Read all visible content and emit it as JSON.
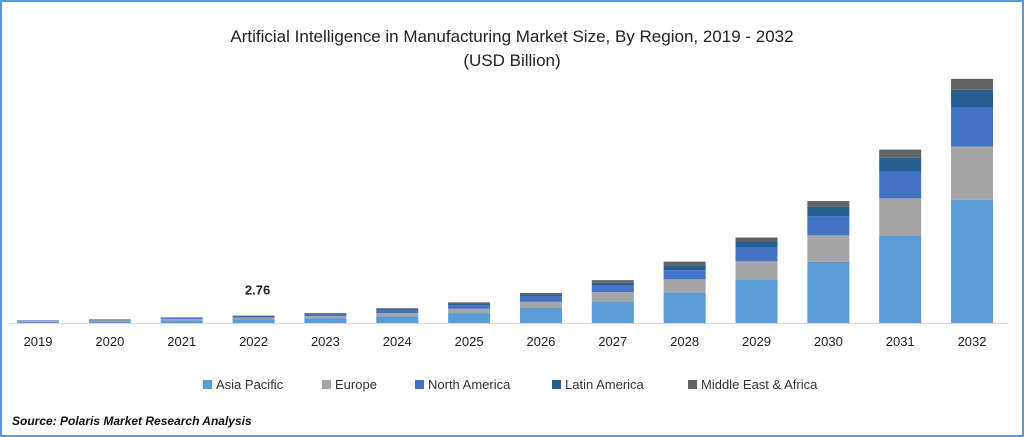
{
  "chart_data": {
    "type": "bar",
    "stacked": true,
    "title": "Artificial Intelligence in Manufacturing Market Size, By Region, 2019 - 2032",
    "subtitle": "(USD Billion)",
    "xlabel": "",
    "ylabel": "",
    "grid": false,
    "legend_position": "bottom",
    "categories": [
      "2019",
      "2020",
      "2021",
      "2022",
      "2023",
      "2024",
      "2025",
      "2026",
      "2027",
      "2028",
      "2029",
      "2030",
      "2031",
      "2032"
    ],
    "series": [
      {
        "name": "Asia Pacific",
        "color": "#5b9bd5",
        "values": [
          0.49,
          0.69,
          1.03,
          1.35,
          1.8,
          2.5,
          3.7,
          5.6,
          8.1,
          11.2,
          16.2,
          22.8,
          32.6,
          46.0
        ]
      },
      {
        "name": "Europe",
        "color": "#a5a5a5",
        "values": [
          0.21,
          0.3,
          0.45,
          0.6,
          0.8,
          1.2,
          1.6,
          2.3,
          3.4,
          5.1,
          6.8,
          9.9,
          13.9,
          19.8
        ]
      },
      {
        "name": "North America",
        "color": "#4472c4",
        "values": [
          0.16,
          0.23,
          0.35,
          0.45,
          0.6,
          1.0,
          1.3,
          1.9,
          2.4,
          3.4,
          5.1,
          7.1,
          10.0,
          14.5
        ]
      },
      {
        "name": "Latin America",
        "color": "#255e91",
        "values": [
          0.08,
          0.11,
          0.17,
          0.22,
          0.3,
          0.5,
          0.7,
          0.9,
          1.1,
          1.9,
          2.3,
          3.6,
          5.2,
          6.7
        ]
      },
      {
        "name": "Middle East & Africa",
        "color": "#636363",
        "values": [
          0.06,
          0.07,
          0.1,
          0.14,
          0.2,
          0.3,
          0.4,
          0.5,
          1.0,
          1.3,
          1.5,
          2.1,
          3.0,
          4.1
        ]
      }
    ],
    "annotations": [
      {
        "category": "2022",
        "text": "2.76"
      }
    ]
  },
  "source": "Source: Polaris Market Research Analysis",
  "colors": {
    "frame": "#5b9bd5",
    "axis": "#d9d9d9"
  }
}
